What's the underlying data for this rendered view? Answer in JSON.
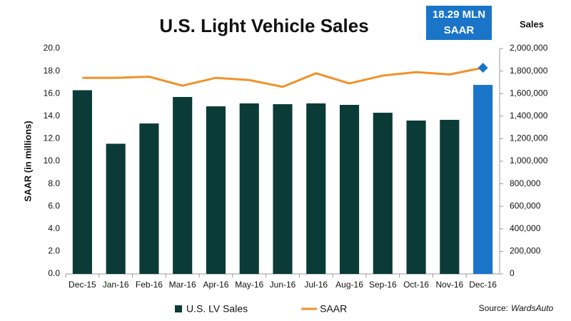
{
  "chart_data": {
    "type": "bar-line",
    "title": "U.S. Light Vehicle Sales",
    "annotation": [
      "18.29 MLN",
      "SAAR"
    ],
    "annotation_color": "#1a75c9",
    "y_label": "SAAR (in millions)",
    "y2_label": "Sales",
    "source_label": "Source:",
    "source": "WardsAuto",
    "categories": [
      "Dec-15",
      "Jan-16",
      "Feb-16",
      "Mar-16",
      "Apr-16",
      "May-16",
      "Jun-16",
      "Jul-16",
      "Aug-16",
      "Sep-16",
      "Oct-16",
      "Nov-16",
      "Dec-16"
    ],
    "series": [
      {
        "name": "U.S. LV Sales",
        "type": "bar",
        "axis": "y2",
        "color": "#0b3b36",
        "colors": [
          "#0b3b36",
          "#0b3b36",
          "#0b3b36",
          "#0b3b36",
          "#0b3b36",
          "#0b3b36",
          "#0b3b36",
          "#0b3b36",
          "#0b3b36",
          "#0b3b36",
          "#0b3b36",
          "#0b3b36",
          "#1a75c9"
        ],
        "values": [
          1630000,
          1155000,
          1335000,
          1570000,
          1487000,
          1513000,
          1506000,
          1513000,
          1500000,
          1430000,
          1361000,
          1367000,
          1677000
        ]
      },
      {
        "name": "SAAR",
        "type": "line",
        "axis": "y",
        "color": "#f0912a",
        "last_marker": "diamond",
        "marker_color": "#1a75c9",
        "values": [
          17.4,
          17.4,
          17.5,
          16.7,
          17.4,
          17.2,
          16.6,
          17.8,
          16.9,
          17.6,
          17.9,
          17.7,
          18.29
        ]
      }
    ],
    "ylim": [
      0,
      20
    ],
    "yticks": [
      {
        "value": 0,
        "label": "0.0"
      },
      {
        "value": 2,
        "label": "2.0"
      },
      {
        "value": 4,
        "label": "4.0"
      },
      {
        "value": 6,
        "label": "6.0"
      },
      {
        "value": 8,
        "label": "8.0"
      },
      {
        "value": 10,
        "label": "10.0"
      },
      {
        "value": 12,
        "label": "12.0"
      },
      {
        "value": 14,
        "label": "14.0"
      },
      {
        "value": 16,
        "label": "16.0"
      },
      {
        "value": 18,
        "label": "18.0"
      },
      {
        "value": 20,
        "label": "20.0"
      }
    ],
    "y2lim": [
      0,
      2000000
    ],
    "y2ticks": [
      0,
      {
        "value": 200000,
        "label": "200,000"
      },
      {
        "value": 400000,
        "label": "400,000"
      },
      {
        "value": 600000,
        "label": "600,000"
      },
      {
        "value": 800000,
        "label": "800,000"
      },
      {
        "value": 1000000,
        "label": "1,000,000"
      },
      {
        "value": 1200000,
        "label": "1,200,000"
      },
      {
        "value": 1400000,
        "label": "1,400,000"
      },
      {
        "value": 1600000,
        "label": "1,600,000"
      },
      {
        "value": 1800000,
        "label": "1,800,000"
      },
      {
        "value": 2000000,
        "label": "2,000,000"
      }
    ],
    "legend": "bottom"
  }
}
